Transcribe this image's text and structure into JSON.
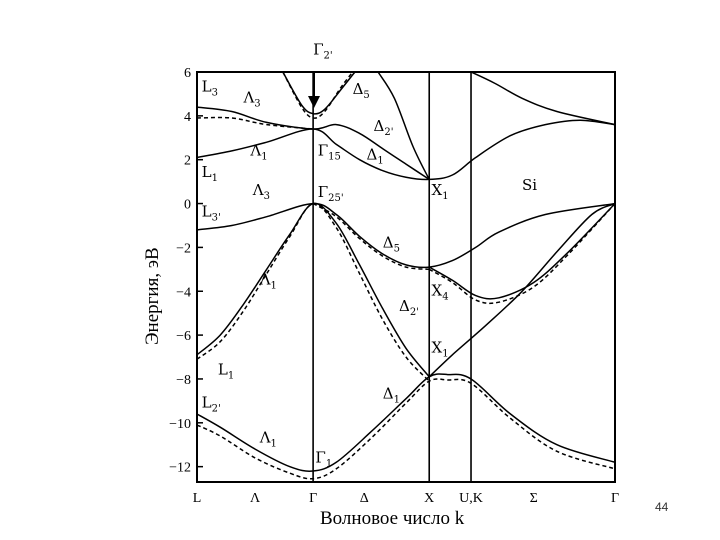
{
  "page_number": "44",
  "material_label": "Si",
  "chart_data": {
    "type": "line",
    "title": "",
    "xlabel": "Волновое число k",
    "ylabel": "Энергия, эВ",
    "ylim": [
      -12.7,
      6
    ],
    "yticks": [
      6,
      4,
      2,
      0,
      -2,
      -4,
      -6,
      -8,
      -10,
      -12
    ],
    "k_points": [
      {
        "label": "L",
        "k": 0
      },
      {
        "label": "Λ",
        "k": 0.25
      },
      {
        "label": "Γ",
        "k": 0.5
      },
      {
        "label": "Δ",
        "k": 0.72
      },
      {
        "label": "X",
        "k": 1.0
      },
      {
        "label": "U,K",
        "k": 1.18
      },
      {
        "label": "Σ",
        "k": 1.45
      },
      {
        "label": "Γ",
        "k": 1.8
      }
    ],
    "xlim": [
      0,
      1.8
    ],
    "vertical_lines_at_k": [
      0.5,
      1.0,
      1.18
    ],
    "legend": "none",
    "grid": false,
    "series": [
      {
        "style": "solid",
        "points": [
          [
            0,
            -9.6
          ],
          [
            0.1,
            -10.2
          ],
          [
            0.25,
            -11.2
          ],
          [
            0.4,
            -12
          ],
          [
            0.5,
            -12.2
          ],
          [
            0.6,
            -11.8
          ],
          [
            0.75,
            -10.4
          ],
          [
            0.9,
            -8.9
          ],
          [
            1.0,
            -7.9
          ],
          [
            1.08,
            -7.8
          ],
          [
            1.18,
            -8
          ],
          [
            1.35,
            -9.6
          ],
          [
            1.55,
            -11
          ],
          [
            1.8,
            -11.8
          ]
        ]
      },
      {
        "style": "dashed",
        "points": [
          [
            0,
            -10.1
          ],
          [
            0.1,
            -10.6
          ],
          [
            0.25,
            -11.6
          ],
          [
            0.4,
            -12.3
          ],
          [
            0.5,
            -12.55
          ],
          [
            0.6,
            -12.1
          ],
          [
            0.75,
            -10.7
          ],
          [
            0.9,
            -9.1
          ],
          [
            1.0,
            -8.1
          ],
          [
            1.08,
            -8.05
          ],
          [
            1.18,
            -8.2
          ],
          [
            1.35,
            -9.8
          ],
          [
            1.55,
            -11.3
          ],
          [
            1.8,
            -12.1
          ]
        ]
      },
      {
        "style": "solid",
        "points": [
          [
            0,
            -6.9
          ],
          [
            0.1,
            -6
          ],
          [
            0.2,
            -4.6
          ],
          [
            0.3,
            -3
          ],
          [
            0.4,
            -1.4
          ],
          [
            0.5,
            0
          ],
          [
            0.6,
            -0.9
          ],
          [
            0.7,
            -2.8
          ],
          [
            0.8,
            -4.8
          ],
          [
            0.9,
            -6.6
          ],
          [
            1.0,
            -7.9
          ]
        ]
      },
      {
        "style": "dashed",
        "points": [
          [
            0,
            -7.1
          ],
          [
            0.1,
            -6.3
          ],
          [
            0.2,
            -4.9
          ],
          [
            0.3,
            -3.2
          ],
          [
            0.4,
            -1.5
          ],
          [
            0.5,
            0
          ],
          [
            0.6,
            -1.1
          ],
          [
            0.7,
            -3.2
          ],
          [
            0.8,
            -5.3
          ],
          [
            0.9,
            -7
          ],
          [
            1.0,
            -8.1
          ]
        ]
      },
      {
        "style": "solid",
        "points": [
          [
            1.0,
            -7.9
          ],
          [
            1.1,
            -6.9
          ],
          [
            1.25,
            -5.5
          ],
          [
            1.4,
            -4
          ],
          [
            1.55,
            -2.2
          ],
          [
            1.7,
            -0.5
          ],
          [
            1.8,
            0
          ]
        ]
      },
      {
        "style": "solid",
        "points": [
          [
            0,
            -1.2
          ],
          [
            0.15,
            -1
          ],
          [
            0.3,
            -0.6
          ],
          [
            0.5,
            0
          ],
          [
            0.6,
            -0.5
          ],
          [
            0.7,
            -1.5
          ],
          [
            0.8,
            -2.3
          ],
          [
            0.9,
            -2.8
          ],
          [
            1.0,
            -2.9
          ],
          [
            1.1,
            -2.6
          ],
          [
            1.2,
            -2
          ],
          [
            1.3,
            -1.3
          ],
          [
            1.5,
            -0.5
          ],
          [
            1.8,
            0
          ]
        ]
      },
      {
        "style": "dashed",
        "points": [
          [
            0.5,
            0
          ],
          [
            0.6,
            -0.6
          ],
          [
            0.7,
            -1.6
          ],
          [
            0.8,
            -2.4
          ],
          [
            0.9,
            -2.9
          ],
          [
            1.0,
            -3.0
          ]
        ]
      },
      {
        "style": "solid",
        "points": [
          [
            1.0,
            -2.9
          ],
          [
            1.1,
            -3.5
          ],
          [
            1.2,
            -4.2
          ],
          [
            1.3,
            -4.3
          ],
          [
            1.45,
            -3.6
          ],
          [
            1.6,
            -2.2
          ],
          [
            1.8,
            0
          ]
        ]
      },
      {
        "style": "dashed",
        "points": [
          [
            1.0,
            -3.0
          ],
          [
            1.1,
            -3.6
          ],
          [
            1.2,
            -4.4
          ],
          [
            1.3,
            -4.5
          ],
          [
            1.45,
            -3.8
          ],
          [
            1.6,
            -2.3
          ],
          [
            1.8,
            0
          ]
        ]
      },
      {
        "style": "solid",
        "points": [
          [
            0,
            2.1
          ],
          [
            0.15,
            2.4
          ],
          [
            0.3,
            2.8
          ],
          [
            0.5,
            3.4
          ],
          [
            0.6,
            2.7
          ],
          [
            0.7,
            2.0
          ],
          [
            0.8,
            1.5
          ],
          [
            0.9,
            1.2
          ],
          [
            1.0,
            1.1
          ],
          [
            1.1,
            1.3
          ],
          [
            1.2,
            2.1
          ],
          [
            1.35,
            3.1
          ],
          [
            1.5,
            3.6
          ],
          [
            1.65,
            3.8
          ],
          [
            1.8,
            3.6
          ]
        ]
      },
      {
        "style": "solid",
        "points": [
          [
            0,
            4.4
          ],
          [
            0.15,
            4.2
          ],
          [
            0.3,
            3.7
          ],
          [
            0.5,
            3.4
          ],
          [
            0.6,
            3.6
          ],
          [
            0.7,
            3.2
          ],
          [
            0.8,
            2.5
          ],
          [
            0.9,
            1.8
          ],
          [
            1.0,
            1.1
          ]
        ]
      },
      {
        "style": "dashed",
        "points": [
          [
            0,
            3.9
          ],
          [
            0.15,
            3.9
          ],
          [
            0.3,
            3.6
          ],
          [
            0.5,
            3.4
          ]
        ]
      },
      {
        "style": "solid",
        "points": [
          [
            0.37,
            6
          ],
          [
            0.45,
            4.5
          ],
          [
            0.5,
            4.1
          ],
          [
            0.55,
            4.3
          ],
          [
            0.62,
            5.2
          ],
          [
            0.68,
            6
          ]
        ]
      },
      {
        "style": "dashed",
        "points": [
          [
            0.37,
            6
          ],
          [
            0.45,
            4.4
          ],
          [
            0.5,
            3.9
          ],
          [
            0.55,
            4.2
          ],
          [
            0.62,
            5.3
          ],
          [
            0.67,
            6
          ]
        ]
      },
      {
        "style": "solid",
        "points": [
          [
            0.78,
            6
          ],
          [
            0.85,
            4.8
          ],
          [
            0.93,
            2.6
          ],
          [
            1.0,
            1.1
          ]
        ]
      },
      {
        "style": "solid",
        "points": [
          [
            1.18,
            6
          ],
          [
            1.28,
            5.5
          ],
          [
            1.4,
            4.8
          ],
          [
            1.55,
            4.2
          ],
          [
            1.8,
            3.6
          ]
        ]
      }
    ],
    "annotations": [
      {
        "text": "L",
        "sub": "3",
        "k": 0.02,
        "E": 5.1
      },
      {
        "text": "Λ",
        "sub": "3",
        "k": 0.2,
        "E": 4.6
      },
      {
        "text": "Γ",
        "sub": "2'",
        "k": 0.5,
        "E": 6.8
      },
      {
        "text": "Δ",
        "sub": "5",
        "k": 0.67,
        "E": 5.0
      },
      {
        "text": "Δ",
        "sub": "2'",
        "k": 0.76,
        "E": 3.3
      },
      {
        "text": "L",
        "sub": "1",
        "k": 0.02,
        "E": 1.2
      },
      {
        "text": "Λ",
        "sub": "1",
        "k": 0.23,
        "E": 2.2
      },
      {
        "text": "Γ",
        "sub": "15",
        "k": 0.52,
        "E": 2.2
      },
      {
        "text": "Δ",
        "sub": "1",
        "k": 0.73,
        "E": 2.0
      },
      {
        "text": "X",
        "sub": "1",
        "k": 1.01,
        "E": 0.4
      },
      {
        "text": "Λ",
        "sub": "3",
        "k": 0.24,
        "E": 0.4
      },
      {
        "text": "Γ",
        "sub": "25'",
        "k": 0.52,
        "E": 0.3
      },
      {
        "text": "L",
        "sub": "3'",
        "k": 0.02,
        "E": -0.6
      },
      {
        "text": "Δ",
        "sub": "5",
        "k": 0.8,
        "E": -2.0
      },
      {
        "text": "Λ",
        "sub": "1",
        "k": 0.27,
        "E": -3.7
      },
      {
        "text": "X",
        "sub": "4",
        "k": 1.01,
        "E": -4.2
      },
      {
        "text": "Δ",
        "sub": "2'",
        "k": 0.87,
        "E": -4.9
      },
      {
        "text": "L",
        "sub": "2'",
        "k": 0.02,
        "E": -9.3
      },
      {
        "text": "L",
        "sub": "1",
        "k": 0.09,
        "E": -7.8
      },
      {
        "text": "X",
        "sub": "1",
        "k": 1.01,
        "E": -6.8
      },
      {
        "text": "Δ",
        "sub": "1",
        "k": 0.8,
        "E": -8.9
      },
      {
        "text": "Λ",
        "sub": "1",
        "k": 0.27,
        "E": -10.9
      },
      {
        "text": "Γ",
        "sub": "1",
        "k": 0.51,
        "E": -11.8
      }
    ]
  }
}
